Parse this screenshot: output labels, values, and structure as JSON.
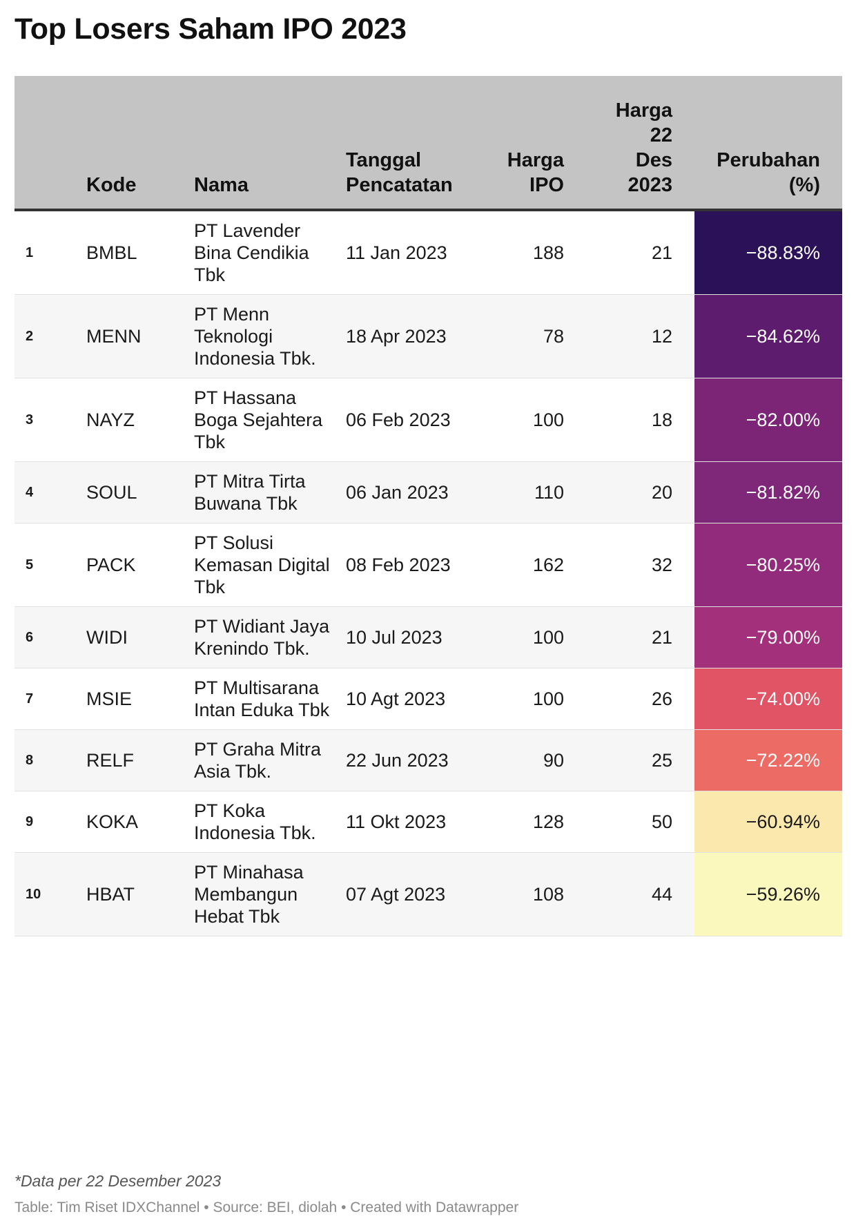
{
  "title": "Top Losers Saham IPO 2023",
  "headers": {
    "rank": "",
    "kode": "Kode",
    "nama": "Nama",
    "tanggal": [
      "Tanggal",
      "Pencatatan"
    ],
    "harga_ipo": [
      "Harga",
      "IPO"
    ],
    "harga_des": [
      "Harga",
      "22",
      "Des",
      "2023"
    ],
    "perubahan": [
      "Perubahan",
      "(%)"
    ]
  },
  "chart_data": {
    "type": "table",
    "title": "Top Losers Saham IPO 2023",
    "columns": [
      "",
      "Kode",
      "Nama",
      "Tanggal Pencatatan",
      "Harga IPO",
      "Harga 22 Des 2023",
      "Perubahan (%)"
    ],
    "rows": [
      {
        "rank": "1",
        "kode": "BMBL",
        "nama": "PT Lavender Bina Cendikia Tbk",
        "tanggal": "11 Jan 2023",
        "harga_ipo": "188",
        "harga_des": "21",
        "perubahan": "−88.83%",
        "value": -88.83,
        "color": "#2a1158"
      },
      {
        "rank": "2",
        "kode": "MENN",
        "nama": "PT Menn Teknologi Indonesia Tbk.",
        "tanggal": "18 Apr 2023",
        "harga_ipo": "78",
        "harga_des": "12",
        "perubahan": "−84.62%",
        "value": -84.62,
        "color": "#5d1c6e"
      },
      {
        "rank": "3",
        "kode": "NAYZ",
        "nama": "PT Hassana Boga Sejahtera Tbk",
        "tanggal": "06 Feb 2023",
        "harga_ipo": "100",
        "harga_des": "18",
        "perubahan": "−82.00%",
        "value": -82.0,
        "color": "#7c2577"
      },
      {
        "rank": "4",
        "kode": "SOUL",
        "nama": "PT Mitra Tirta Buwana Tbk",
        "tanggal": "06 Jan 2023",
        "harga_ipo": "110",
        "harga_des": "20",
        "perubahan": "−81.82%",
        "value": -81.82,
        "color": "#7f2778"
      },
      {
        "rank": "5",
        "kode": "PACK",
        "nama": "PT Solusi Kemasan Digital Tbk",
        "tanggal": "08 Feb 2023",
        "harga_ipo": "162",
        "harga_des": "32",
        "perubahan": "−80.25%",
        "value": -80.25,
        "color": "#922b7b"
      },
      {
        "rank": "6",
        "kode": "WIDI",
        "nama": "PT Widiant Jaya Krenindo Tbk.",
        "tanggal": "10 Jul 2023",
        "harga_ipo": "100",
        "harga_des": "21",
        "perubahan": "−79.00%",
        "value": -79.0,
        "color": "#a3307b"
      },
      {
        "rank": "7",
        "kode": "MSIE",
        "nama": "PT Multisarana Intan Eduka Tbk",
        "tanggal": "10 Agt 2023",
        "harga_ipo": "100",
        "harga_des": "26",
        "perubahan": "−74.00%",
        "value": -74.0,
        "color": "#e15466"
      },
      {
        "rank": "8",
        "kode": "RELF",
        "nama": "PT Graha Mitra Asia Tbk.",
        "tanggal": "22 Jun 2023",
        "harga_ipo": "90",
        "harga_des": "25",
        "perubahan": "−72.22%",
        "value": -72.22,
        "color": "#ec6c65"
      },
      {
        "rank": "9",
        "kode": "KOKA",
        "nama": "PT Koka Indonesia Tbk.",
        "tanggal": "11 Okt 2023",
        "harga_ipo": "128",
        "harga_des": "50",
        "perubahan": "−60.94%",
        "value": -60.94,
        "color": "#fbe8ad"
      },
      {
        "rank": "10",
        "kode": "HBAT",
        "nama": "PT Minahasa Membangun Hebat Tbk",
        "tanggal": "07 Agt 2023",
        "harga_ipo": "108",
        "harga_des": "44",
        "perubahan": "−59.26%",
        "value": -59.26,
        "color": "#fbf8be"
      }
    ]
  },
  "footnote": "*Data per 22 Desember 2023",
  "source": "Table: Tim Riset IDXChannel • Source: BEI, diolah • Created with Datawrapper"
}
